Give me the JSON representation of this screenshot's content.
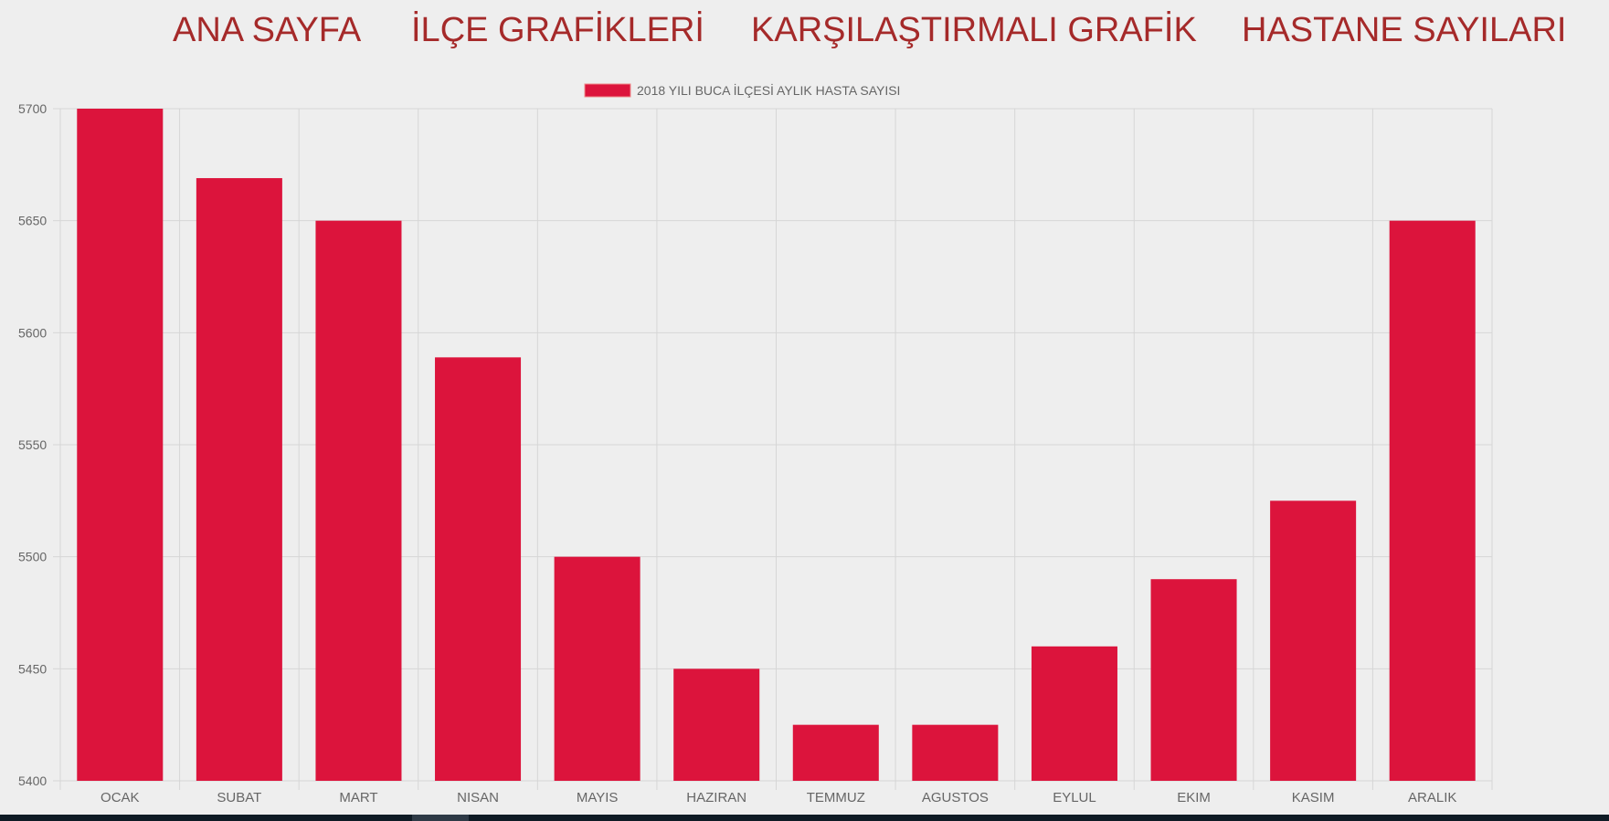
{
  "nav": {
    "items": [
      {
        "label": "ANA SAYFA"
      },
      {
        "label": "İLÇE GRAFİKLERİ"
      },
      {
        "label": "KARŞILAŞTIRMALI GRAFİK"
      },
      {
        "label": "HASTANE SAYILARI"
      }
    ]
  },
  "colors": {
    "nav_text": "#a52a2a",
    "bar_fill": "#dc143c",
    "grid": "#d6d6d6",
    "tick_text": "#666666",
    "background": "#eeeeee"
  },
  "chart_data": {
    "type": "bar",
    "title": "",
    "xlabel": "",
    "ylabel": "",
    "legend": {
      "position": "top-center",
      "entries": [
        "2018 YILI BUCA İLÇESİ AYLIK HASTA SAYISI"
      ]
    },
    "grid": true,
    "categories": [
      "OCAK",
      "SUBAT",
      "MART",
      "NISAN",
      "MAYIS",
      "HAZIRAN",
      "TEMMUZ",
      "AGUSTOS",
      "EYLUL",
      "EKIM",
      "KASIM",
      "ARALIK"
    ],
    "series": [
      {
        "name": "2018 YILI BUCA İLÇESİ AYLIK HASTA SAYISI",
        "values": [
          5700,
          5669,
          5650,
          5589,
          5500,
          5450,
          5425,
          5425,
          5460,
          5490,
          5525,
          5650
        ]
      }
    ],
    "ylim": [
      5400,
      5700
    ],
    "yticks": [
      5700,
      5650,
      5600,
      5550,
      5500,
      5450,
      5400
    ]
  }
}
